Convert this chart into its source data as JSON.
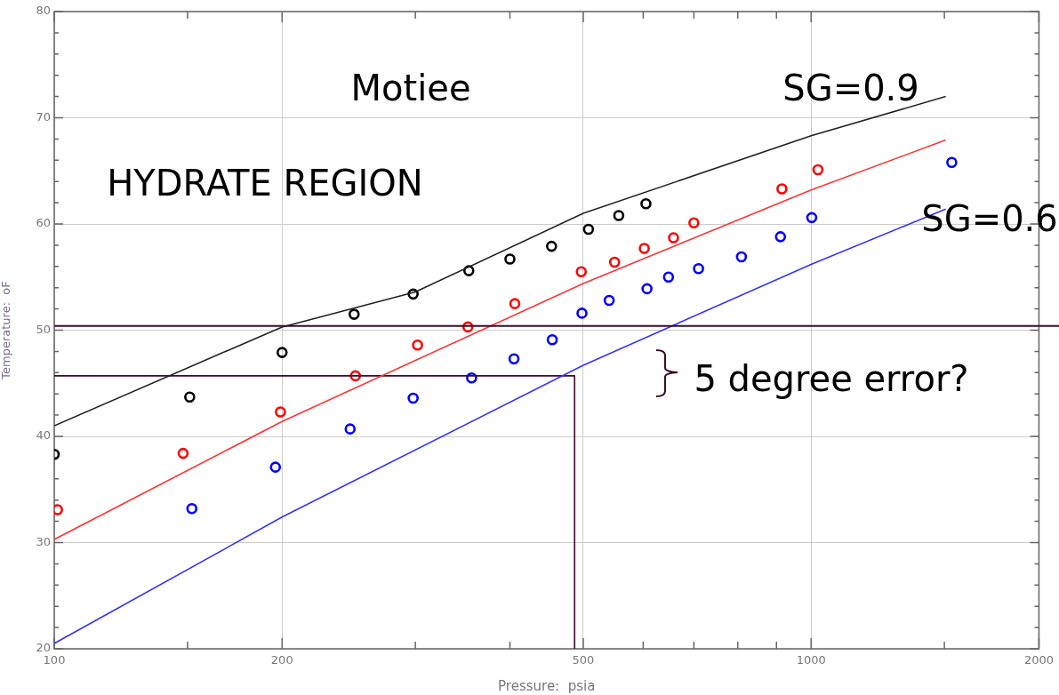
{
  "chart_data": {
    "type": "scatter",
    "xlabel": "Pressure:  psia",
    "ylabel": "Temperature:  oF",
    "log": "x",
    "xlim": [
      100,
      2000
    ],
    "xticks": [
      100,
      {
        "value": 150,
        "label": null
      },
      200,
      {
        "value": 300,
        "label": null
      },
      {
        "value": 400,
        "label": null
      },
      500,
      {
        "value": 600,
        "label": null
      },
      {
        "value": 700,
        "label": null
      },
      {
        "value": 800,
        "label": null
      },
      {
        "value": 900,
        "label": null
      },
      1000,
      {
        "value": 1500,
        "label": null
      },
      2000
    ],
    "ylim": [
      20,
      80
    ],
    "yticks": [
      20,
      {
        "value": 22,
        "label": null
      },
      {
        "value": 24,
        "label": null
      },
      {
        "value": 26,
        "label": null
      },
      {
        "value": 28,
        "label": null
      },
      30,
      {
        "value": 32,
        "label": null
      },
      {
        "value": 34,
        "label": null
      },
      {
        "value": 36,
        "label": null
      },
      {
        "value": 38,
        "label": null
      },
      40,
      {
        "value": 42,
        "label": null
      },
      {
        "value": 44,
        "label": null
      },
      {
        "value": 46,
        "label": null
      },
      {
        "value": 48,
        "label": null
      },
      50,
      {
        "value": 52,
        "label": null
      },
      {
        "value": 54,
        "label": null
      },
      {
        "value": 56,
        "label": null
      },
      {
        "value": 58,
        "label": null
      },
      60,
      {
        "value": 62,
        "label": null
      },
      {
        "value": 64,
        "label": null
      },
      {
        "value": 66,
        "label": null
      },
      {
        "value": 68,
        "label": null
      },
      70,
      {
        "value": 72,
        "label": null
      },
      {
        "value": 74,
        "label": null
      },
      {
        "value": 76,
        "label": null
      },
      {
        "value": 78,
        "label": null
      },
      80
    ],
    "grid": true,
    "legend": false,
    "series": [
      {
        "type": "line",
        "color": "#222222",
        "marker": "none",
        "line_style": "solid",
        "x": [
          100,
          200,
          300,
          500,
          1000,
          1506
        ],
        "values": [
          41,
          50.3,
          53.6,
          61,
          68.3,
          72
        ]
      },
      {
        "type": "line",
        "color": "#ff3333",
        "marker": "none",
        "line_style": "solid",
        "x": [
          100,
          200,
          500,
          1000,
          1506
        ],
        "values": [
          30.3,
          41.4,
          54.4,
          63.2,
          67.9
        ]
      },
      {
        "type": "line",
        "color": "#3333ff",
        "marker": "none",
        "line_style": "solid",
        "x": [
          100,
          200,
          500,
          1000,
          1506
        ],
        "values": [
          20.5,
          32.4,
          46.7,
          56.2,
          61.4
        ]
      },
      {
        "type": "line",
        "color": "#3d0a2a",
        "marker": "none",
        "line_style": "solid",
        "x": [
          100,
          487,
          487
        ],
        "values": [
          45.7,
          45.7,
          20
        ]
      },
      {
        "color": "#000000",
        "marker": "circle",
        "x": [
          100,
          151,
          200,
          249,
          298,
          353,
          400,
          454,
          508,
          557,
          605
        ],
        "values": [
          38.3,
          43.7,
          47.9,
          51.5,
          53.4,
          55.6,
          56.7,
          57.9,
          59.5,
          60.8,
          61.9
        ]
      },
      {
        "color": "#ff0000",
        "marker": "circle",
        "x": [
          101,
          148,
          199,
          250,
          302,
          352,
          406,
          497,
          550,
          602,
          658,
          700,
          915,
          1021
        ],
        "values": [
          33.1,
          38.4,
          42.3,
          45.7,
          48.6,
          50.3,
          52.5,
          55.5,
          56.4,
          57.7,
          58.7,
          60.1,
          63.3,
          65.1
        ]
      },
      {
        "color": "#0000ff",
        "marker": "circle",
        "x": [
          152,
          196,
          246,
          298,
          356,
          405,
          455,
          498,
          541,
          607,
          648,
          710,
          809,
          911,
          1002,
          1534
        ],
        "values": [
          33.2,
          37.1,
          40.7,
          43.6,
          45.5,
          47.3,
          49.1,
          51.6,
          52.8,
          53.9,
          55,
          55.8,
          56.9,
          58.8,
          60.6,
          65.8
        ]
      }
    ],
    "ref_lines": [
      {
        "axis": "y",
        "value": 50.4,
        "color": "#3d0a2a",
        "line_style": "solid"
      }
    ],
    "annotations": [
      "Motiee",
      "HYDRATE REGION",
      "SG=0.9",
      "SG=0.6",
      "5 degree error?"
    ]
  }
}
